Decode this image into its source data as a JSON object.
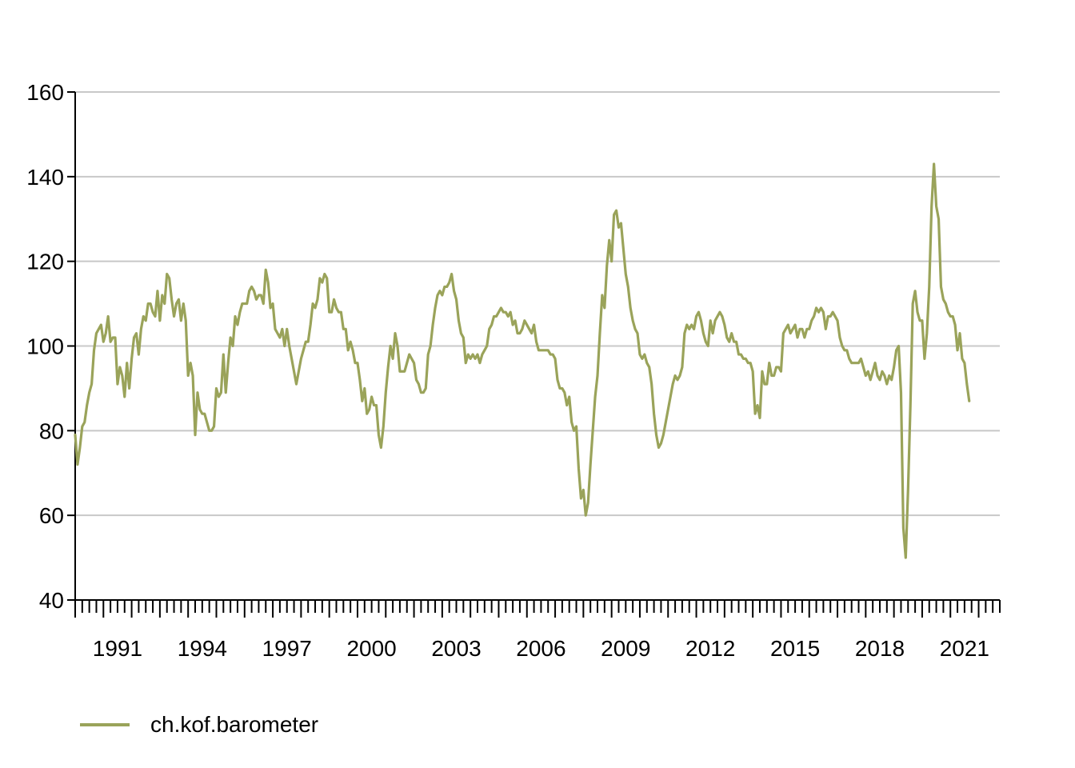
{
  "colors": {
    "series": "#9aa35a",
    "grid": "#c8c8c8",
    "axis": "#000000",
    "text": "#000000"
  },
  "chart_data": {
    "type": "line",
    "title": "",
    "xlabel": "",
    "ylabel": "",
    "xlim": [
      1990.0,
      2022.75
    ],
    "ylim": [
      40,
      160
    ],
    "xticks": [
      "1991",
      "1994",
      "1997",
      "2000",
      "2003",
      "2006",
      "2009",
      "2012",
      "2015",
      "2018",
      "2021"
    ],
    "yticks": [
      "40",
      "60",
      "80",
      "100",
      "120",
      "140",
      "160"
    ],
    "grid": "horizontal",
    "legend_position": "bottom-left",
    "x_start": "1990-01",
    "x_frequency": "monthly",
    "series": [
      {
        "name": "ch.kof.barometer",
        "values": [
          79,
          72,
          76,
          81,
          82,
          86,
          89,
          91,
          99,
          103,
          104,
          105,
          101,
          103,
          107,
          101,
          102,
          102,
          91,
          95,
          93,
          88,
          96,
          90,
          97,
          102,
          103,
          98,
          104,
          107,
          106,
          110,
          110,
          108,
          107,
          113,
          106,
          112,
          110,
          117,
          116,
          111,
          107,
          110,
          111,
          106,
          110,
          106,
          93,
          96,
          93,
          79,
          89,
          85,
          84,
          84,
          82,
          80,
          80,
          81,
          90,
          88,
          89,
          98,
          89,
          96,
          102,
          100,
          107,
          105,
          108,
          110,
          110,
          110,
          113,
          114,
          113,
          111,
          112,
          112,
          110,
          118,
          115,
          109,
          110,
          104,
          103,
          102,
          104,
          100,
          104,
          100,
          97,
          94,
          91,
          94,
          97,
          99,
          101,
          101,
          105,
          110,
          109,
          111,
          116,
          115,
          117,
          116,
          108,
          108,
          111,
          109,
          108,
          108,
          104,
          104,
          99,
          101,
          99,
          96,
          96,
          92,
          87,
          90,
          84,
          85,
          88,
          86,
          86,
          79,
          76,
          81,
          89,
          95,
          100,
          97,
          103,
          100,
          94,
          94,
          94,
          96,
          98,
          97,
          96,
          92,
          91,
          89,
          89,
          90,
          98,
          100,
          105,
          109,
          112,
          113,
          112,
          114,
          114,
          115,
          117,
          113,
          111,
          106,
          103,
          102,
          96,
          98,
          97,
          98,
          97,
          98,
          96,
          98,
          99,
          100,
          104,
          105,
          107,
          107,
          108,
          109,
          108,
          108,
          107,
          108,
          105,
          106,
          103,
          103,
          104,
          106,
          105,
          104,
          103,
          105,
          101,
          99,
          99,
          99,
          99,
          99,
          98,
          98,
          97,
          92,
          90,
          90,
          89,
          86,
          88,
          82,
          80,
          81,
          71,
          64,
          66,
          60,
          63,
          72,
          80,
          88,
          93,
          103,
          112,
          109,
          119,
          125,
          120,
          131,
          132,
          128,
          129,
          123,
          117,
          114,
          109,
          106,
          104,
          103,
          98,
          97,
          98,
          96,
          95,
          91,
          84,
          79,
          76,
          77,
          79,
          82,
          85,
          88,
          91,
          93,
          92,
          93,
          95,
          103,
          105,
          104,
          105,
          104,
          107,
          108,
          106,
          103,
          101,
          100,
          106,
          103,
          106,
          107,
          108,
          107,
          105,
          102,
          101,
          103,
          101,
          101,
          98,
          98,
          97,
          97,
          96,
          96,
          94,
          84,
          86,
          83,
          94,
          91,
          91,
          96,
          93,
          93,
          95,
          95,
          94,
          103,
          104,
          105,
          103,
          104,
          105,
          102,
          104,
          104,
          102,
          104,
          104,
          106,
          107,
          109,
          108,
          109,
          108,
          104,
          107,
          107,
          108,
          107,
          106,
          102,
          100,
          99,
          99,
          97,
          96,
          96,
          96,
          96,
          97,
          95,
          93,
          94,
          92,
          94,
          96,
          93,
          92,
          94,
          93,
          91,
          93,
          92,
          95,
          99,
          100,
          89,
          57,
          50,
          66,
          86,
          110,
          113,
          108,
          106,
          106,
          97,
          103,
          114,
          133,
          143,
          133,
          130,
          114,
          111,
          110,
          108,
          107,
          107,
          105,
          99,
          103,
          97,
          96,
          91,
          87
        ]
      }
    ]
  }
}
